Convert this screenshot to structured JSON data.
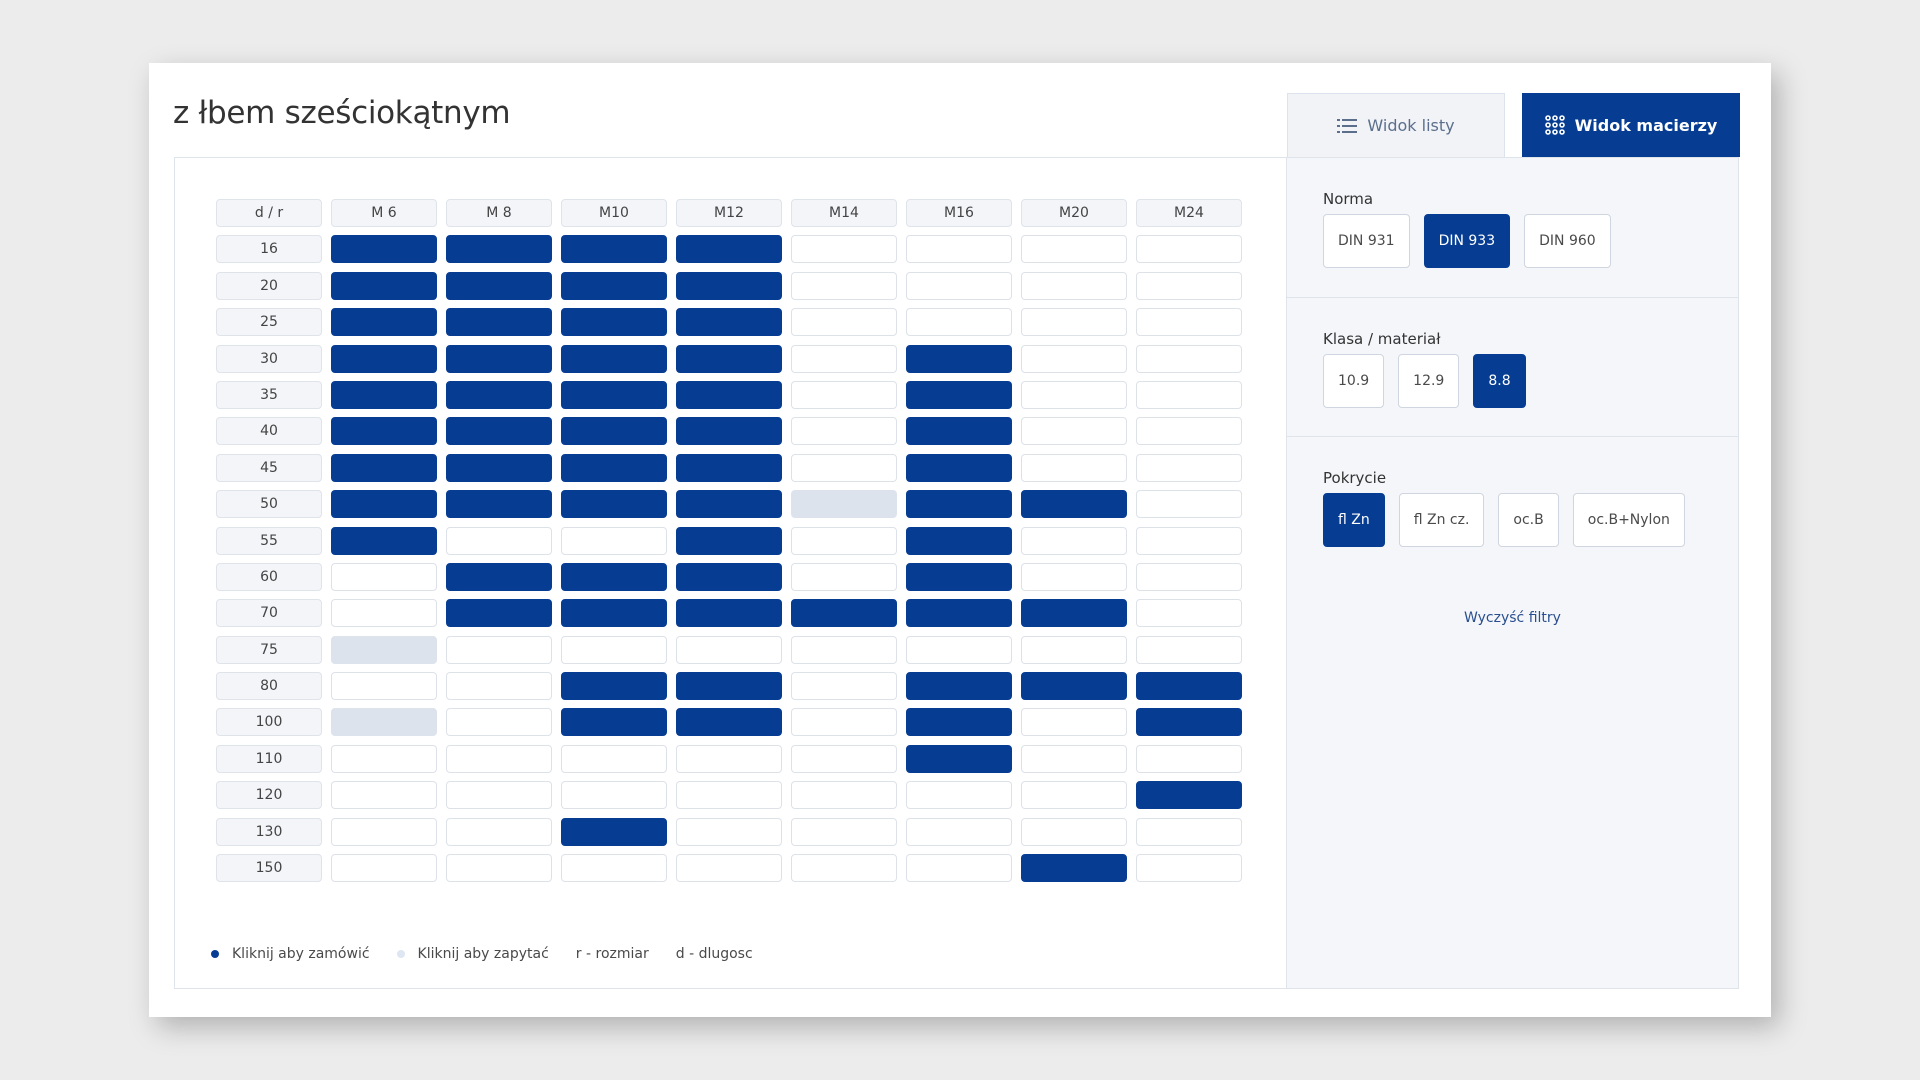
{
  "page": {
    "title": "z łbem sześciokątnym"
  },
  "view_tabs": {
    "list_label": "Widok listy",
    "matrix_label": "Widok macierzy"
  },
  "colors": {
    "accent": "#063d92",
    "inquiry": "#dde3ec",
    "empty": "#ffffff"
  },
  "matrix": {
    "corner_label": "d / r",
    "sizes": [
      "M 6",
      "M 8",
      "M10",
      "M12",
      "M14",
      "M16",
      "M20",
      "M24"
    ],
    "rows": [
      {
        "length": "16",
        "cells": [
          "available",
          "available",
          "available",
          "available",
          "none",
          "none",
          "none",
          "none"
        ]
      },
      {
        "length": "20",
        "cells": [
          "available",
          "available",
          "available",
          "available",
          "none",
          "none",
          "none",
          "none"
        ]
      },
      {
        "length": "25",
        "cells": [
          "available",
          "available",
          "available",
          "available",
          "none",
          "none",
          "none",
          "none"
        ]
      },
      {
        "length": "30",
        "cells": [
          "available",
          "available",
          "available",
          "available",
          "none",
          "available",
          "none",
          "none"
        ]
      },
      {
        "length": "35",
        "cells": [
          "available",
          "available",
          "available",
          "available",
          "none",
          "available",
          "none",
          "none"
        ]
      },
      {
        "length": "40",
        "cells": [
          "available",
          "available",
          "available",
          "available",
          "none",
          "available",
          "none",
          "none"
        ]
      },
      {
        "length": "45",
        "cells": [
          "available",
          "available",
          "available",
          "available",
          "none",
          "available",
          "none",
          "none"
        ]
      },
      {
        "length": "50",
        "cells": [
          "available",
          "available",
          "available",
          "available",
          "inquiry",
          "available",
          "available",
          "none"
        ]
      },
      {
        "length": "55",
        "cells": [
          "available",
          "none",
          "none",
          "available",
          "none",
          "available",
          "none",
          "none"
        ]
      },
      {
        "length": "60",
        "cells": [
          "none",
          "available",
          "available",
          "available",
          "none",
          "available",
          "none",
          "none"
        ]
      },
      {
        "length": "70",
        "cells": [
          "none",
          "available",
          "available",
          "available",
          "available",
          "available",
          "available",
          "none"
        ]
      },
      {
        "length": "75",
        "cells": [
          "inquiry",
          "none",
          "none",
          "none",
          "none",
          "none",
          "none",
          "none"
        ]
      },
      {
        "length": "80",
        "cells": [
          "none",
          "none",
          "available",
          "available",
          "none",
          "available",
          "available",
          "available"
        ]
      },
      {
        "length": "100",
        "cells": [
          "inquiry",
          "none",
          "available",
          "available",
          "none",
          "available",
          "none",
          "available"
        ]
      },
      {
        "length": "110",
        "cells": [
          "none",
          "none",
          "none",
          "none",
          "none",
          "available",
          "none",
          "none"
        ]
      },
      {
        "length": "120",
        "cells": [
          "none",
          "none",
          "none",
          "none",
          "none",
          "none",
          "none",
          "available"
        ]
      },
      {
        "length": "130",
        "cells": [
          "none",
          "none",
          "available",
          "none",
          "none",
          "none",
          "none",
          "none"
        ]
      },
      {
        "length": "150",
        "cells": [
          "none",
          "none",
          "none",
          "none",
          "none",
          "none",
          "available",
          "none"
        ]
      }
    ]
  },
  "legend": {
    "order": "Kliknij aby zamówić",
    "inquiry": "Kliknij aby zapytać",
    "r": "r - rozmiar",
    "d": "d - dlugosc"
  },
  "filters": {
    "norma": {
      "title": "Norma",
      "options": [
        "DIN 931",
        "DIN 933",
        "DIN 960"
      ],
      "selected": "DIN 933"
    },
    "klasa": {
      "title": "Klasa / materiał",
      "options": [
        "10.9",
        "12.9",
        "8.8"
      ],
      "selected": "8.8"
    },
    "pokrycie": {
      "title": "Pokrycie",
      "options": [
        "fl Zn",
        "fl Zn cz.",
        "oc.B",
        "oc.B+Nylon"
      ],
      "selected": "fl Zn"
    },
    "clear_label": "Wyczyść filtry"
  }
}
